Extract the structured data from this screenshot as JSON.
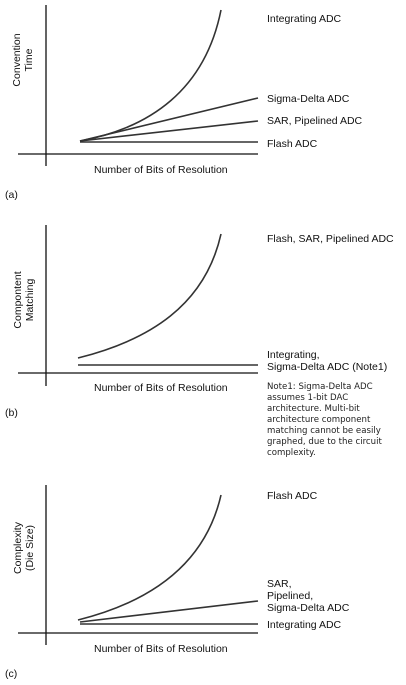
{
  "chart_data": [
    {
      "type": "line",
      "panel": "(a)",
      "ylabel": [
        "Convention",
        "Time"
      ],
      "xlabel": "Number of Bits of Resolution",
      "series": [
        {
          "name": "Integrating ADC",
          "shape": "exponential"
        },
        {
          "name": "Sigma-Delta ADC",
          "shape": "linear"
        },
        {
          "name": "SAR, Pipelined ADC",
          "shape": "linear"
        },
        {
          "name": "Flash ADC",
          "shape": "linear"
        }
      ]
    },
    {
      "type": "line",
      "panel": "(b)",
      "ylabel": [
        "Compontent",
        "Matching"
      ],
      "xlabel": "Number of Bits of Resolution",
      "series": [
        {
          "name": "Flash, SAR, Pipelined ADC",
          "shape": "exponential"
        },
        {
          "name": "Integrating, Sigma-Delta ADC (Note1)",
          "shape": "flat"
        }
      ],
      "note": "Note1: Sigma-Delta ADC assumes 1-bit DAC architecture. Multi-bit architecture component matching cannot be easily graphed, due to the circuit complexity."
    },
    {
      "type": "line",
      "panel": "(c)",
      "ylabel": [
        "Complexity",
        "(Die Size)"
      ],
      "xlabel": "Number of Bits of Resolution",
      "series": [
        {
          "name": "Flash ADC",
          "shape": "exponential"
        },
        {
          "name": "SAR, Pipelined, Sigma-Delta ADC",
          "shape": "linear"
        },
        {
          "name": "Integrating ADC",
          "shape": "flat"
        }
      ]
    }
  ],
  "labels": {
    "a": {
      "panel": "(a)",
      "y1": "Convention",
      "y2": "Time",
      "x": "Number of Bits of Resolution",
      "s1": "Integrating ADC",
      "s2": "Sigma-Delta ADC",
      "s3": "SAR, Pipelined ADC",
      "s4": "Flash ADC"
    },
    "b": {
      "panel": "(b)",
      "y1": "Compontent",
      "y2": "Matching",
      "x": "Number of Bits of Resolution",
      "s1": "Flash, SAR, Pipelined ADC",
      "s2a": "Integrating,",
      "s2b": "Sigma-Delta ADC (Note1)",
      "note": [
        "Note1: Sigma-Delta ADC",
        "assumes 1-bit DAC",
        "architecture. Multi-bit",
        "architecture component",
        "matching cannot be easily",
        "graphed, due to the circuit",
        "complexity."
      ]
    },
    "c": {
      "panel": "(c)",
      "y1": "Complexity",
      "y2": "(Die Size)",
      "x": "Number of Bits of Resolution",
      "s1": "Flash ADC",
      "s2a": "SAR,",
      "s2b": "Pipelined,",
      "s2c": "Sigma-Delta ADC",
      "s3": "Integrating ADC"
    }
  }
}
